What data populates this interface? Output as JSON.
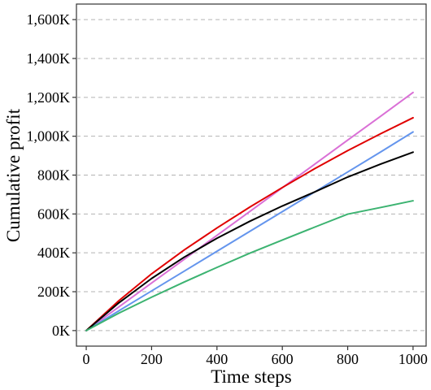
{
  "chart_data": {
    "type": "line",
    "title": "",
    "xlabel": "Time steps",
    "ylabel": "Cumulative profit",
    "xlim": [
      -30,
      1040
    ],
    "ylim": [
      -80000,
      1680000
    ],
    "x_ticks": [
      0,
      200,
      400,
      600,
      800,
      1000
    ],
    "x_tick_labels": [
      "0",
      "200",
      "400",
      "600",
      "800",
      "1000"
    ],
    "y_ticks": [
      0,
      200000,
      400000,
      600000,
      800000,
      1000000,
      1200000,
      1400000,
      1600000
    ],
    "y_tick_labels": [
      "0K",
      "200K",
      "400K",
      "600K",
      "800K",
      "1,000K",
      "1,200K",
      "1,400K",
      "1,600K"
    ],
    "grid": "horizontal-dashed",
    "legend": "none",
    "x": [
      0,
      100,
      200,
      300,
      400,
      500,
      600,
      700,
      800,
      900,
      1000
    ],
    "series": [
      {
        "color": "#DA70D6",
        "values": [
          0,
          122000,
          245000,
          367000,
          490000,
          612000,
          735000,
          857000,
          980000,
          1102000,
          1225000
        ]
      },
      {
        "color": "#E00000",
        "values": [
          0,
          154000,
          292000,
          415000,
          528000,
          635000,
          736000,
          834000,
          926000,
          1012000,
          1095000
        ]
      },
      {
        "color": "#6495ED",
        "values": [
          0,
          102000,
          204000,
          306000,
          408000,
          510000,
          612000,
          714000,
          816000,
          918000,
          1022000
        ]
      },
      {
        "color": "#000000",
        "values": [
          0,
          143000,
          268000,
          378000,
          475000,
          562000,
          641000,
          714000,
          790000,
          856000,
          918000
        ]
      },
      {
        "color": "#3CB371",
        "values": [
          0,
          90000,
          172000,
          250000,
          325000,
          398000,
          466000,
          533000,
          599000,
          633000,
          668000
        ]
      }
    ]
  }
}
